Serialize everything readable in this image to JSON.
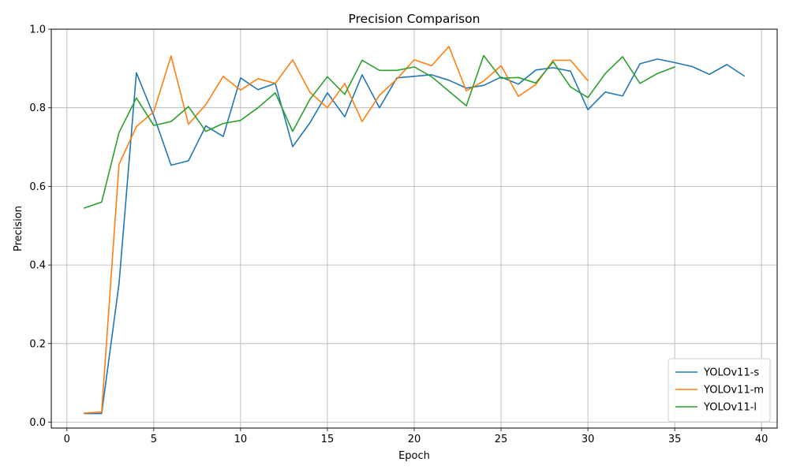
{
  "chart_data": {
    "type": "line",
    "title": "Precision Comparison",
    "xlabel": "Epoch",
    "ylabel": "Precision",
    "xlim": [
      -0.9,
      40.9
    ],
    "ylim": [
      -0.015,
      1.0
    ],
    "xticks": [
      0,
      5,
      10,
      15,
      20,
      25,
      30,
      35,
      40
    ],
    "yticks": [
      0.0,
      0.2,
      0.4,
      0.6,
      0.8,
      1.0
    ],
    "xtick_labels": [
      "0",
      "5",
      "10",
      "15",
      "20",
      "25",
      "30",
      "35",
      "40"
    ],
    "ytick_labels": [
      "0.0",
      "0.2",
      "0.4",
      "0.6",
      "0.8",
      "1.0"
    ],
    "grid": true,
    "legend_position": "bottom-right",
    "series": [
      {
        "name": "YOLOv11-s",
        "color": "#1f77b4",
        "x": [
          1,
          2,
          3,
          4,
          5,
          6,
          7,
          8,
          9,
          10,
          11,
          12,
          13,
          14,
          15,
          16,
          17,
          18,
          19,
          20,
          21,
          22,
          23,
          24,
          25,
          26,
          27,
          28,
          29,
          30,
          31,
          32,
          33,
          34,
          35,
          36,
          37,
          38,
          39
        ],
        "values": [
          0.022,
          0.022,
          0.352,
          0.889,
          0.78,
          0.654,
          0.665,
          0.754,
          0.727,
          0.876,
          0.846,
          0.862,
          0.701,
          0.762,
          0.838,
          0.777,
          0.884,
          0.8,
          0.876,
          0.88,
          0.884,
          0.87,
          0.85,
          0.857,
          0.878,
          0.86,
          0.896,
          0.902,
          0.893,
          0.795,
          0.84,
          0.83,
          0.912,
          0.924,
          0.915,
          0.905,
          0.885,
          0.91,
          0.881
        ]
      },
      {
        "name": "YOLOv11-m",
        "color": "#ff7f0e",
        "x": [
          1,
          2,
          3,
          4,
          5,
          6,
          7,
          8,
          9,
          10,
          11,
          12,
          13,
          14,
          15,
          16,
          17,
          18,
          19,
          20,
          21,
          22,
          23,
          24,
          25,
          26,
          27,
          28,
          29,
          30
        ],
        "values": [
          0.023,
          0.026,
          0.656,
          0.752,
          0.79,
          0.932,
          0.758,
          0.808,
          0.88,
          0.845,
          0.874,
          0.862,
          0.922,
          0.839,
          0.8,
          0.862,
          0.765,
          0.832,
          0.873,
          0.922,
          0.907,
          0.956,
          0.843,
          0.868,
          0.907,
          0.829,
          0.859,
          0.921,
          0.921,
          0.869
        ]
      },
      {
        "name": "YOLOv11-l",
        "color": "#2ca02c",
        "x": [
          1,
          2,
          3,
          4,
          5,
          6,
          7,
          8,
          9,
          10,
          11,
          12,
          13,
          14,
          15,
          16,
          17,
          18,
          19,
          20,
          21,
          22,
          23,
          24,
          25,
          26,
          27,
          28,
          29,
          30,
          31,
          32,
          33,
          34,
          35
        ],
        "values": [
          0.545,
          0.56,
          0.737,
          0.825,
          0.755,
          0.765,
          0.803,
          0.74,
          0.76,
          0.768,
          0.8,
          0.838,
          0.74,
          0.822,
          0.879,
          0.834,
          0.921,
          0.895,
          0.895,
          0.904,
          0.879,
          0.842,
          0.805,
          0.933,
          0.875,
          0.877,
          0.863,
          0.917,
          0.853,
          0.826,
          0.887,
          0.93,
          0.862,
          0.887,
          0.904
        ]
      }
    ]
  }
}
